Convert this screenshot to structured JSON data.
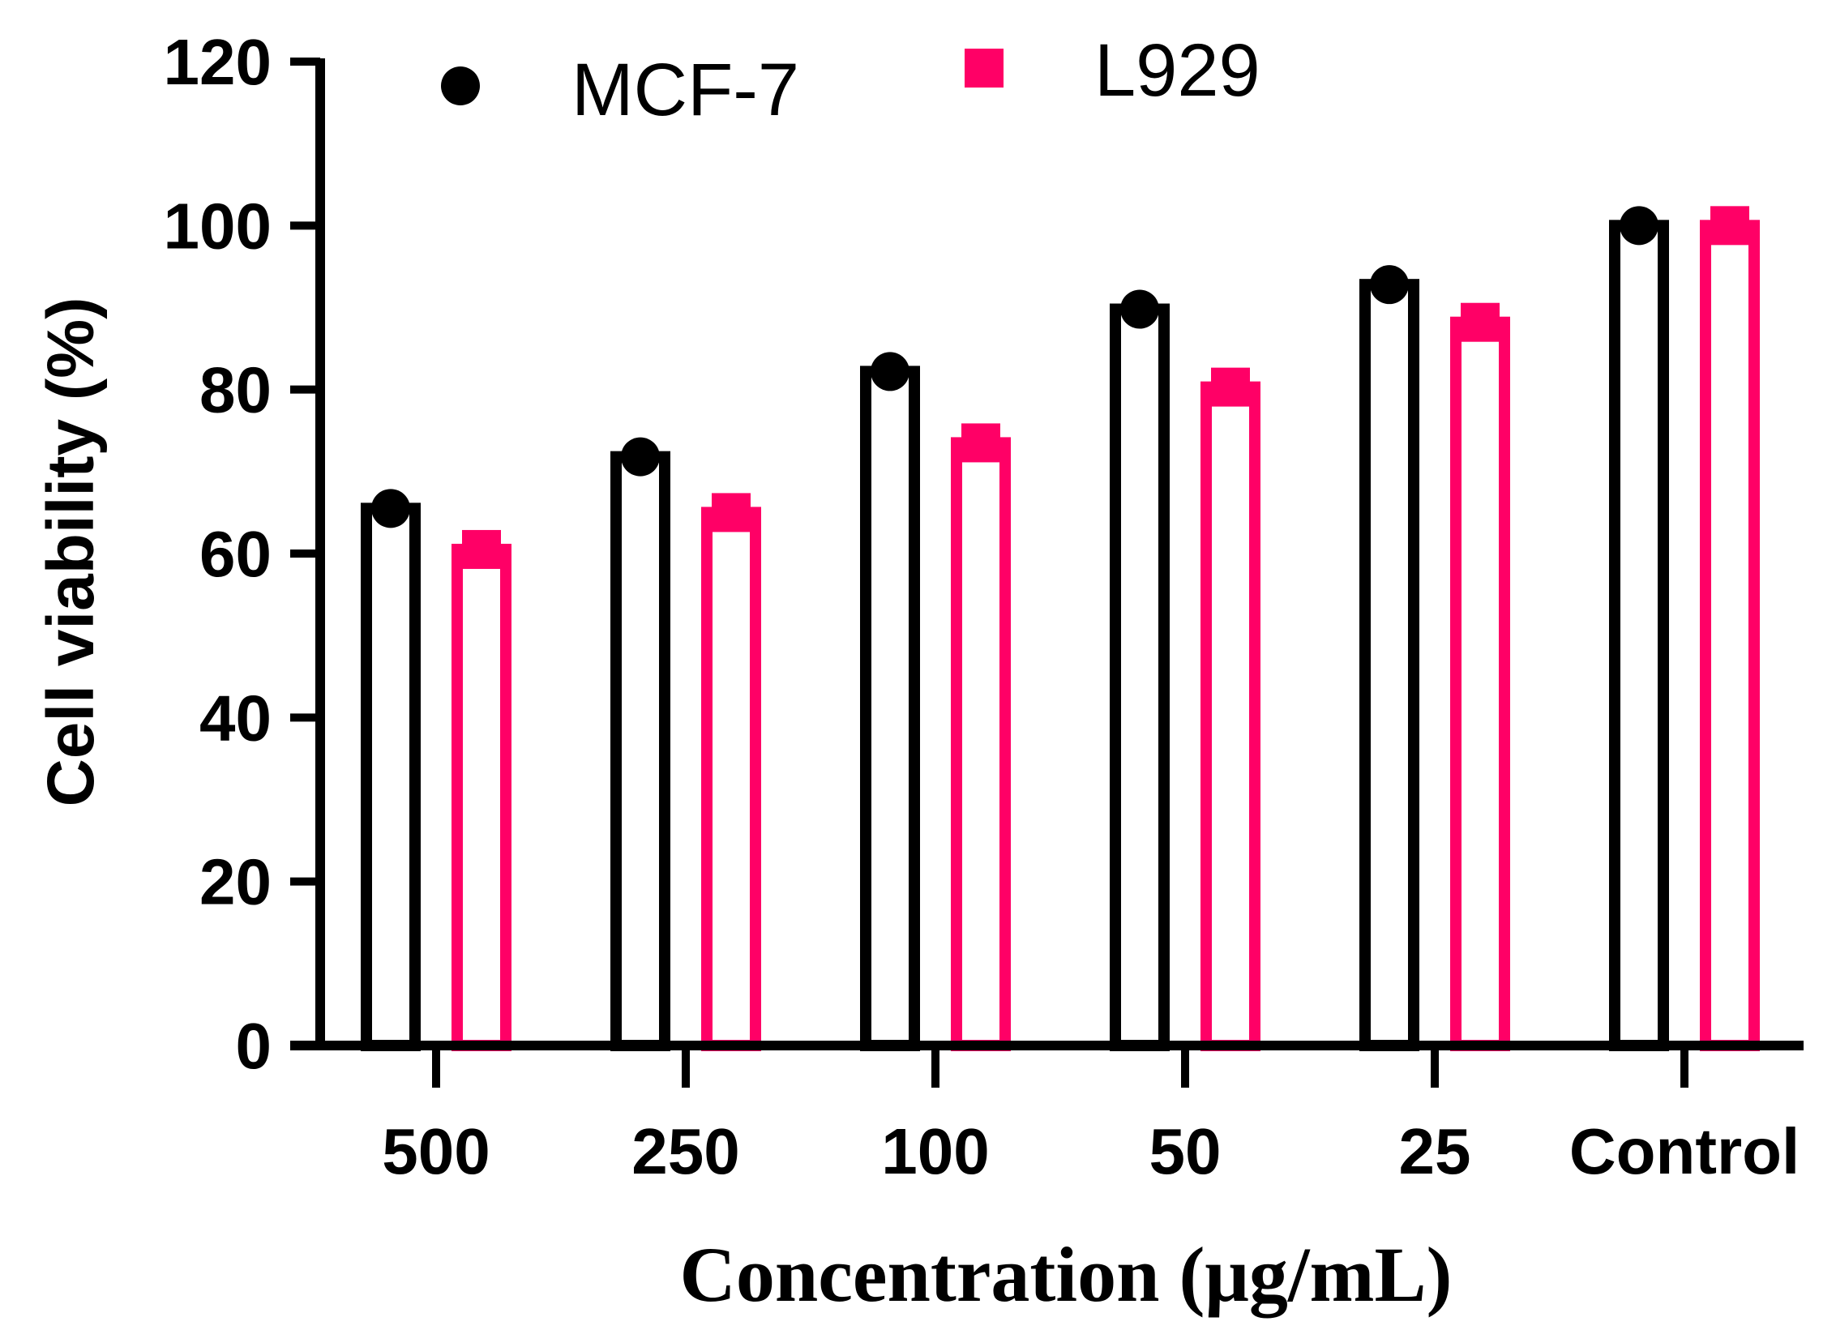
{
  "chart_data": {
    "type": "bar",
    "categories": [
      "500",
      "250",
      "100",
      "50",
      "25",
      "Control"
    ],
    "series": [
      {
        "name": "MCF-7",
        "values": [
          65.5,
          71.8,
          82.2,
          89.8,
          92.8,
          100.0
        ],
        "color": "#000000",
        "marker": "circle"
      },
      {
        "name": "L929",
        "values": [
          60.5,
          65.0,
          73.5,
          80.3,
          88.2,
          100.0
        ],
        "color": "#FF0066",
        "marker": "square"
      }
    ],
    "title": "",
    "xlabel": "Concentration  (μg/mL)",
    "ylabel": "Cell viability (%)",
    "ylim": [
      0,
      120
    ],
    "yticks": [
      "0",
      "20",
      "40",
      "60",
      "80",
      "100",
      "120"
    ],
    "grid": false,
    "legend_position": "top"
  }
}
